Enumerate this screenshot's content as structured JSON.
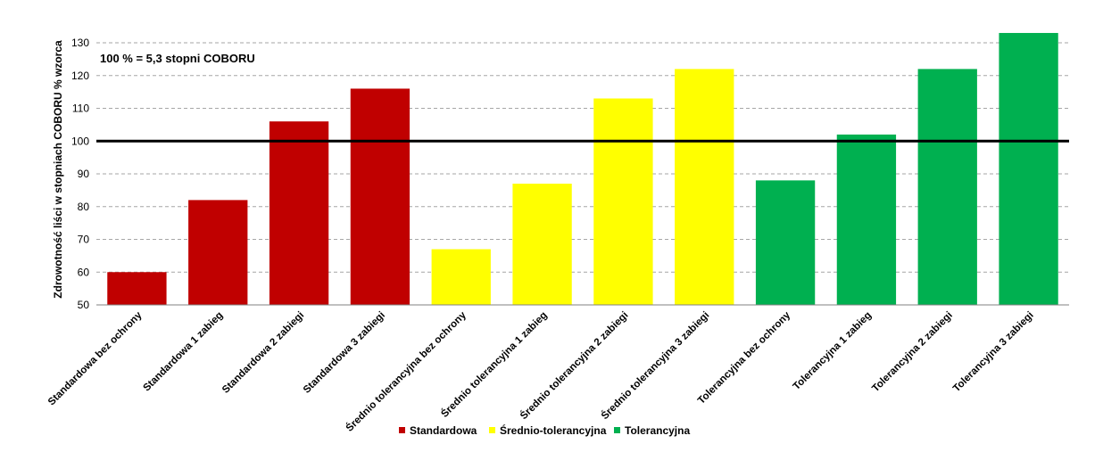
{
  "chart_data": {
    "type": "bar",
    "title": "",
    "annotation": "100 % =  5,3 stopni COBORU",
    "xlabel": "",
    "ylabel": "Zdrowotność liści w stopniach COBORU % wzorca",
    "ylim": [
      50,
      130
    ],
    "yticks": [
      50,
      60,
      70,
      80,
      90,
      100,
      110,
      120,
      130
    ],
    "grid": true,
    "reference_line": 100,
    "legend_position": "bottom",
    "categories": [
      "Standardowa bez ochrony",
      "Standardowa 1 zabieg",
      "Standardowa 2 zabiegi",
      "Standardowa 3 zabiegi",
      "Średnio tolerancyjna bez ochrony",
      "Średnio tolerancyjna 1 zabieg",
      "Średnio tolerancyjna 2 zabiegi",
      "Średnio tolerancyjna 3 zabiegi",
      "Tolerancyjna bez ochrony",
      "Tolerancyjna 1 zabieg",
      "Tolerancyjna 2 zabiegi",
      "Tolerancyjna 3 zabiegi"
    ],
    "values": [
      60,
      82,
      106,
      116,
      67,
      87,
      113,
      122,
      88,
      102,
      122,
      133
    ],
    "groups": [
      0,
      0,
      0,
      0,
      1,
      1,
      1,
      1,
      2,
      2,
      2,
      2
    ],
    "series": [
      {
        "name": "Standardowa",
        "color": "#C00000"
      },
      {
        "name": "Średnio-tolerancyjna",
        "color": "#FFFF00"
      },
      {
        "name": "Tolerancyjna",
        "color": "#00B050"
      }
    ]
  }
}
